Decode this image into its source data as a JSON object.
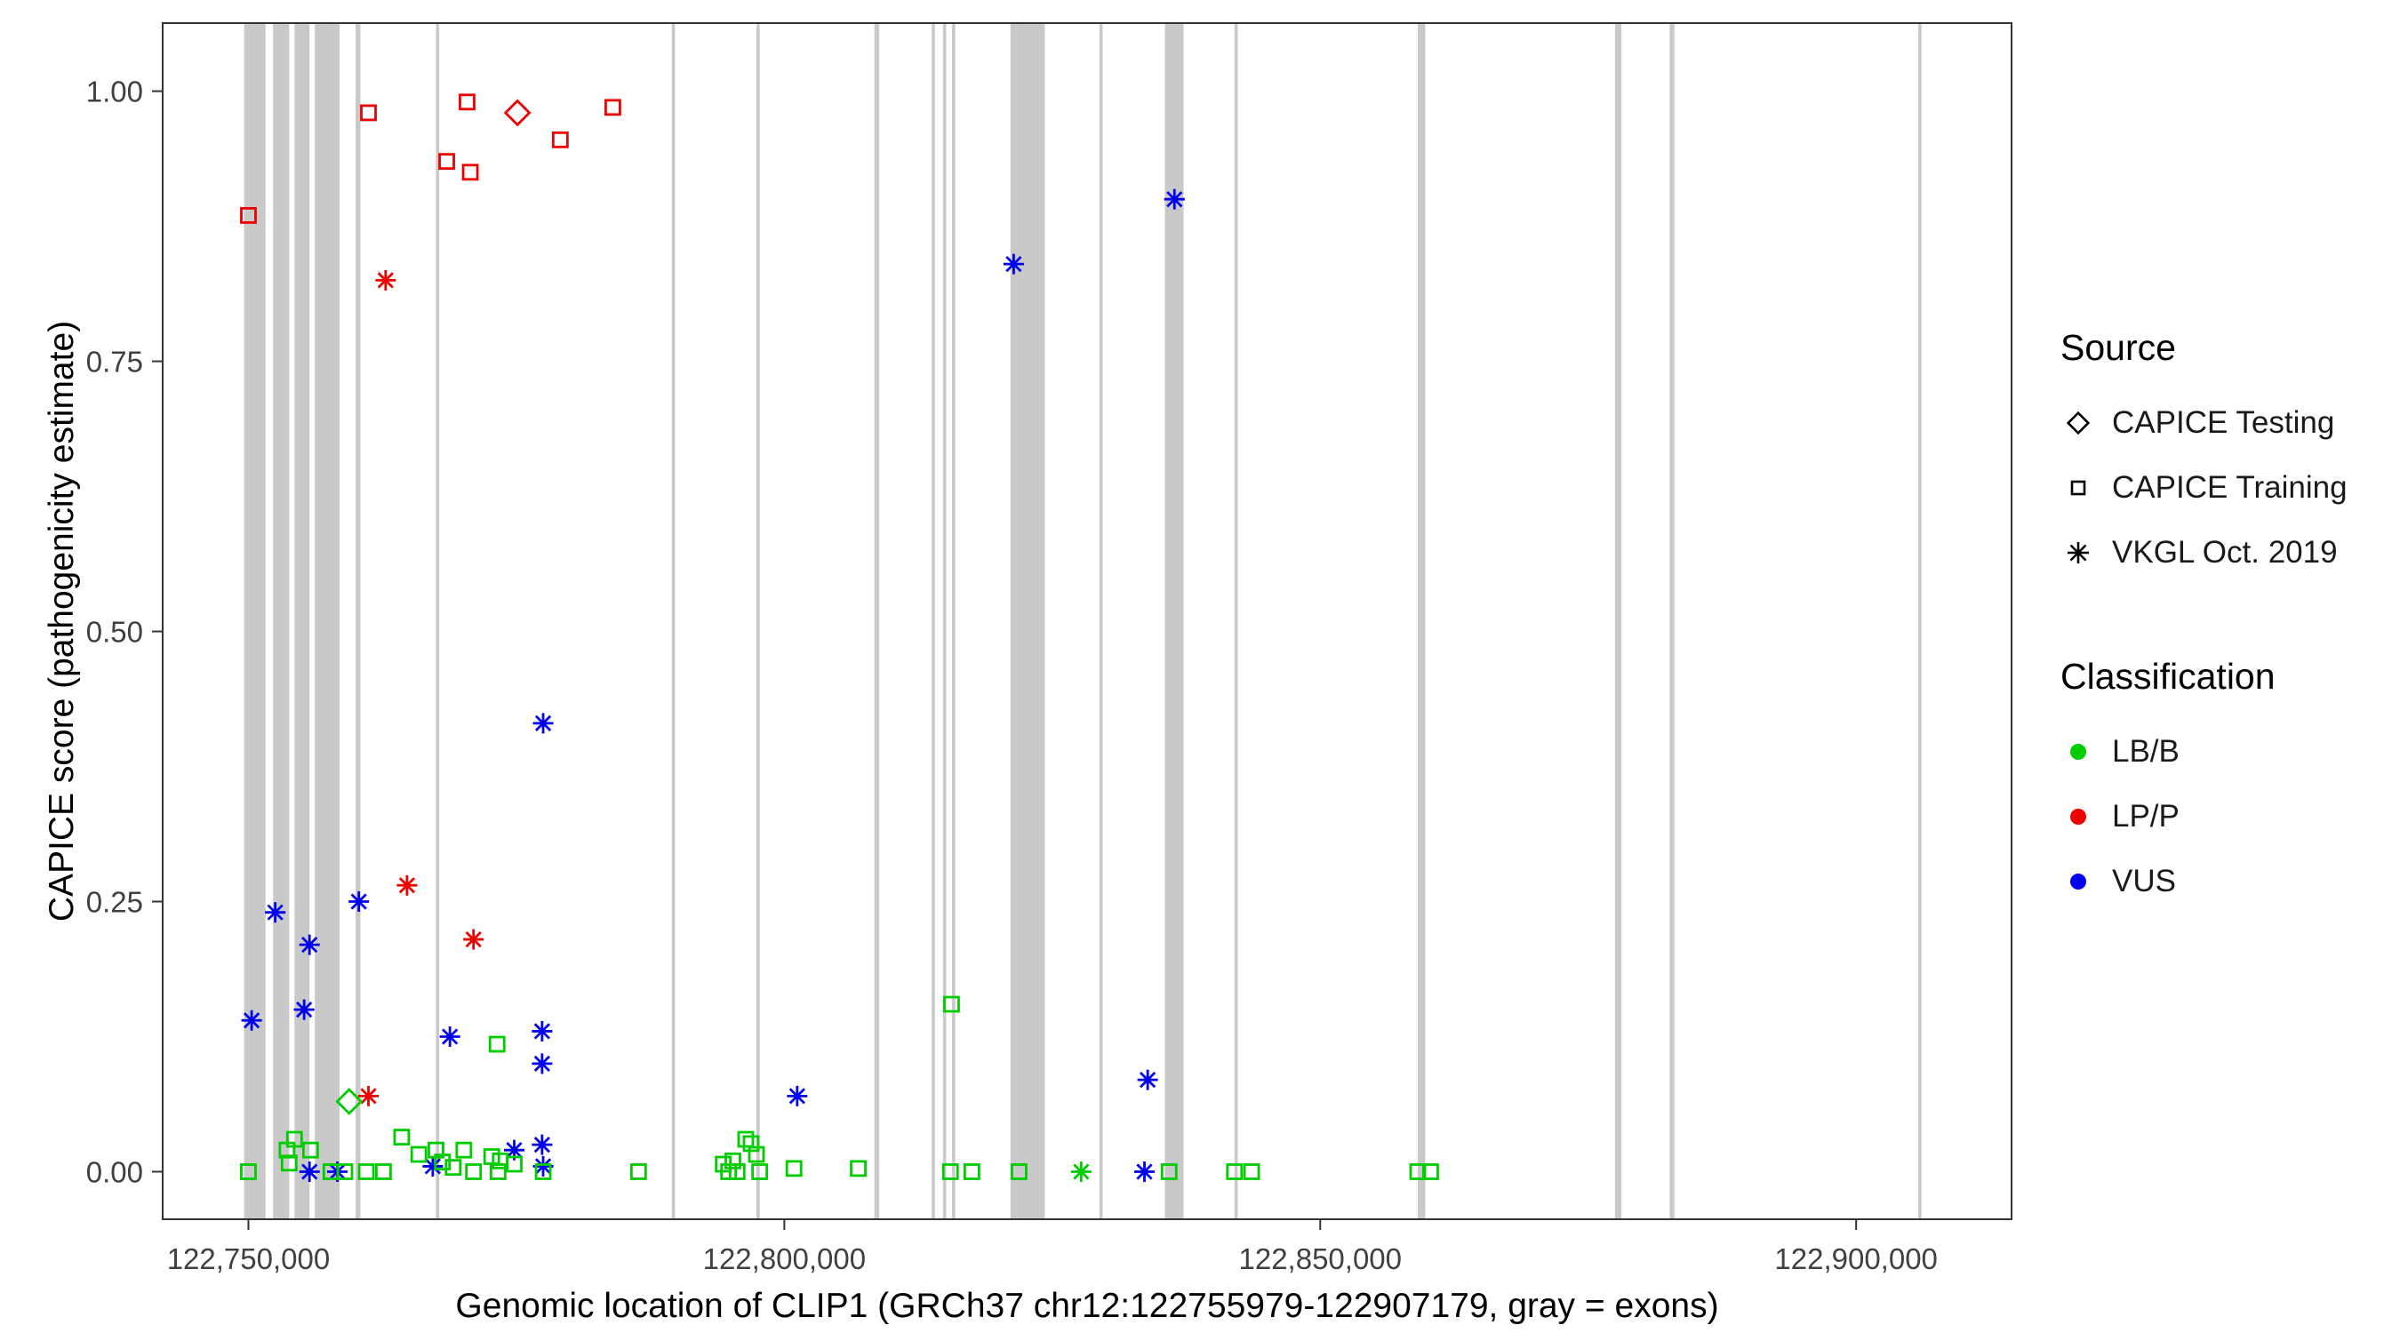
{
  "chart_data": {
    "type": "scatter",
    "title": "",
    "xlabel": "Genomic location of CLIP1 (GRCh37 chr12:122755979-122907179, gray = exons)",
    "ylabel": "CAPICE score (pathogenicity estimate)",
    "xlim": [
      122742000,
      122914500
    ],
    "ylim": [
      -0.044,
      1.063
    ],
    "grid": false,
    "legend_position": "right",
    "background": "#FFFFFF",
    "exon_color": "#C9C9C9",
    "x_ticks": [
      {
        "value": 122750000,
        "label": "122,750,000"
      },
      {
        "value": 122800000,
        "label": "122,800,000"
      },
      {
        "value": 122850000,
        "label": "122,850,000"
      },
      {
        "value": 122900000,
        "label": "122,900,000"
      }
    ],
    "y_ticks": [
      {
        "value": 0.0,
        "label": "0.00"
      },
      {
        "value": 0.25,
        "label": "0.25"
      },
      {
        "value": 0.5,
        "label": "0.50"
      },
      {
        "value": 0.75,
        "label": "0.75"
      },
      {
        "value": 1.0,
        "label": "1.00"
      }
    ],
    "colors": {
      "LB/B": "#00CC00",
      "LP/P": "#EE0000",
      "VUS": "#0000EE"
    },
    "shape_by_source": {
      "Testing": "diamond",
      "Training": "square",
      "VKGL": "asterisk"
    },
    "exons": [
      [
        122749600,
        122751600
      ],
      [
        122752300,
        122753800
      ],
      [
        122754300,
        122755700
      ],
      [
        122756200,
        122758500
      ],
      [
        122760000,
        122760450
      ],
      [
        122767500,
        122767800
      ],
      [
        122789500,
        122789800
      ],
      [
        122797400,
        122797700
      ],
      [
        122808400,
        122808850
      ],
      [
        122813750,
        122814050
      ],
      [
        122814800,
        122815100
      ],
      [
        122815650,
        122815950
      ],
      [
        122821100,
        122824300
      ],
      [
        122829400,
        122829700
      ],
      [
        122835500,
        122837250
      ],
      [
        122842000,
        122842300
      ],
      [
        122859100,
        122859800
      ],
      [
        122877500,
        122878100
      ],
      [
        122882600,
        122883050
      ],
      [
        122905800,
        122906100
      ]
    ],
    "points": [
      {
        "x": 122750000,
        "y": 0.885,
        "src": "Training",
        "cls": "LP/P"
      },
      {
        "x": 122761200,
        "y": 0.98,
        "src": "Training",
        "cls": "LP/P"
      },
      {
        "x": 122768500,
        "y": 0.935,
        "src": "Training",
        "cls": "LP/P"
      },
      {
        "x": 122770700,
        "y": 0.925,
        "src": "Training",
        "cls": "LP/P"
      },
      {
        "x": 122770400,
        "y": 0.99,
        "src": "Training",
        "cls": "LP/P"
      },
      {
        "x": 122779100,
        "y": 0.955,
        "src": "Training",
        "cls": "LP/P"
      },
      {
        "x": 122784000,
        "y": 0.985,
        "src": "Training",
        "cls": "LP/P"
      },
      {
        "x": 122775100,
        "y": 0.98,
        "src": "Testing",
        "cls": "LP/P"
      },
      {
        "x": 122762800,
        "y": 0.825,
        "src": "VKGL",
        "cls": "LP/P"
      },
      {
        "x": 122764800,
        "y": 0.265,
        "src": "VKGL",
        "cls": "LP/P"
      },
      {
        "x": 122771000,
        "y": 0.215,
        "src": "VKGL",
        "cls": "LP/P"
      },
      {
        "x": 122761200,
        "y": 0.07,
        "src": "VKGL",
        "cls": "LP/P"
      },
      {
        "x": 122750300,
        "y": 0.14,
        "src": "VKGL",
        "cls": "VUS"
      },
      {
        "x": 122752500,
        "y": 0.24,
        "src": "VKGL",
        "cls": "VUS"
      },
      {
        "x": 122755700,
        "y": 0.21,
        "src": "VKGL",
        "cls": "VUS"
      },
      {
        "x": 122755200,
        "y": 0.15,
        "src": "VKGL",
        "cls": "VUS"
      },
      {
        "x": 122760300,
        "y": 0.25,
        "src": "VKGL",
        "cls": "VUS"
      },
      {
        "x": 122768800,
        "y": 0.125,
        "src": "VKGL",
        "cls": "VUS"
      },
      {
        "x": 122777500,
        "y": 0.415,
        "src": "VKGL",
        "cls": "VUS"
      },
      {
        "x": 122777400,
        "y": 0.13,
        "src": "VKGL",
        "cls": "VUS"
      },
      {
        "x": 122777400,
        "y": 0.1,
        "src": "VKGL",
        "cls": "VUS"
      },
      {
        "x": 122774800,
        "y": 0.02,
        "src": "VKGL",
        "cls": "VUS"
      },
      {
        "x": 122777400,
        "y": 0.025,
        "src": "VKGL",
        "cls": "VUS"
      },
      {
        "x": 122777500,
        "y": 0.005,
        "src": "VKGL",
        "cls": "VUS"
      },
      {
        "x": 122755700,
        "y": 0.0,
        "src": "VKGL",
        "cls": "VUS"
      },
      {
        "x": 122758300,
        "y": 0.0,
        "src": "VKGL",
        "cls": "VUS"
      },
      {
        "x": 122767200,
        "y": 0.005,
        "src": "VKGL",
        "cls": "VUS"
      },
      {
        "x": 122821400,
        "y": 0.84,
        "src": "VKGL",
        "cls": "VUS"
      },
      {
        "x": 122836400,
        "y": 0.9,
        "src": "VKGL",
        "cls": "VUS"
      },
      {
        "x": 122801200,
        "y": 0.07,
        "src": "VKGL",
        "cls": "VUS"
      },
      {
        "x": 122833900,
        "y": 0.085,
        "src": "VKGL",
        "cls": "VUS"
      },
      {
        "x": 122833600,
        "y": 0.0,
        "src": "VKGL",
        "cls": "VUS"
      },
      {
        "x": 122759400,
        "y": 0.065,
        "src": "Testing",
        "cls": "LB/B"
      },
      {
        "x": 122827700,
        "y": 0.0,
        "src": "VKGL",
        "cls": "LB/B"
      },
      {
        "x": 122750000,
        "y": 0.0,
        "src": "Training",
        "cls": "LB/B"
      },
      {
        "x": 122753600,
        "y": 0.02,
        "src": "Training",
        "cls": "LB/B"
      },
      {
        "x": 122753800,
        "y": 0.008,
        "src": "Training",
        "cls": "LB/B"
      },
      {
        "x": 122754300,
        "y": 0.03,
        "src": "Training",
        "cls": "LB/B"
      },
      {
        "x": 122755800,
        "y": 0.02,
        "src": "Training",
        "cls": "LB/B"
      },
      {
        "x": 122757700,
        "y": 0.0,
        "src": "Training",
        "cls": "LB/B"
      },
      {
        "x": 122759000,
        "y": 0.0,
        "src": "Training",
        "cls": "LB/B"
      },
      {
        "x": 122761000,
        "y": 0.0,
        "src": "Training",
        "cls": "LB/B"
      },
      {
        "x": 122762600,
        "y": 0.0,
        "src": "Training",
        "cls": "LB/B"
      },
      {
        "x": 122764300,
        "y": 0.032,
        "src": "Training",
        "cls": "LB/B"
      },
      {
        "x": 122765900,
        "y": 0.016,
        "src": "Training",
        "cls": "LB/B"
      },
      {
        "x": 122767500,
        "y": 0.02,
        "src": "Training",
        "cls": "LB/B"
      },
      {
        "x": 122768100,
        "y": 0.009,
        "src": "Training",
        "cls": "LB/B"
      },
      {
        "x": 122769100,
        "y": 0.004,
        "src": "Training",
        "cls": "LB/B"
      },
      {
        "x": 122770100,
        "y": 0.02,
        "src": "Training",
        "cls": "LB/B"
      },
      {
        "x": 122771000,
        "y": 0.0,
        "src": "Training",
        "cls": "LB/B"
      },
      {
        "x": 122772700,
        "y": 0.014,
        "src": "Training",
        "cls": "LB/B"
      },
      {
        "x": 122773200,
        "y": 0.118,
        "src": "Training",
        "cls": "LB/B"
      },
      {
        "x": 122773300,
        "y": 0.0,
        "src": "Training",
        "cls": "LB/B"
      },
      {
        "x": 122773500,
        "y": 0.01,
        "src": "Training",
        "cls": "LB/B"
      },
      {
        "x": 122774800,
        "y": 0.007,
        "src": "Training",
        "cls": "LB/B"
      },
      {
        "x": 122777500,
        "y": 0.0,
        "src": "Training",
        "cls": "LB/B"
      },
      {
        "x": 122786400,
        "y": 0.0,
        "src": "Training",
        "cls": "LB/B"
      },
      {
        "x": 122794300,
        "y": 0.007,
        "src": "Training",
        "cls": "LB/B"
      },
      {
        "x": 122794800,
        "y": 0.0,
        "src": "Training",
        "cls": "LB/B"
      },
      {
        "x": 122795200,
        "y": 0.01,
        "src": "Training",
        "cls": "LB/B"
      },
      {
        "x": 122795600,
        "y": 0.0,
        "src": "Training",
        "cls": "LB/B"
      },
      {
        "x": 122796400,
        "y": 0.03,
        "src": "Training",
        "cls": "LB/B"
      },
      {
        "x": 122796900,
        "y": 0.026,
        "src": "Training",
        "cls": "LB/B"
      },
      {
        "x": 122797400,
        "y": 0.016,
        "src": "Training",
        "cls": "LB/B"
      },
      {
        "x": 122797700,
        "y": 0.0,
        "src": "Training",
        "cls": "LB/B"
      },
      {
        "x": 122800900,
        "y": 0.003,
        "src": "Training",
        "cls": "LB/B"
      },
      {
        "x": 122806900,
        "y": 0.003,
        "src": "Training",
        "cls": "LB/B"
      },
      {
        "x": 122815600,
        "y": 0.155,
        "src": "Training",
        "cls": "LB/B"
      },
      {
        "x": 122815500,
        "y": 0.0,
        "src": "Training",
        "cls": "LB/B"
      },
      {
        "x": 122817500,
        "y": 0.0,
        "src": "Training",
        "cls": "LB/B"
      },
      {
        "x": 122821900,
        "y": 0.0,
        "src": "Training",
        "cls": "LB/B"
      },
      {
        "x": 122835900,
        "y": 0.0,
        "src": "Training",
        "cls": "LB/B"
      },
      {
        "x": 122842000,
        "y": 0.0,
        "src": "Training",
        "cls": "LB/B"
      },
      {
        "x": 122843600,
        "y": 0.0,
        "src": "Training",
        "cls": "LB/B"
      },
      {
        "x": 122859100,
        "y": 0.0,
        "src": "Training",
        "cls": "LB/B"
      },
      {
        "x": 122860300,
        "y": 0.0,
        "src": "Training",
        "cls": "LB/B"
      }
    ]
  },
  "legend": {
    "source": {
      "title": "Source",
      "items": [
        {
          "label": "CAPICE Testing",
          "shape": "diamond"
        },
        {
          "label": "CAPICE Training",
          "shape": "square"
        },
        {
          "label": "VKGL Oct. 2019",
          "shape": "asterisk"
        }
      ]
    },
    "classification": {
      "title": "Classification",
      "items": [
        {
          "label": "LB/B",
          "color": "#00CC00"
        },
        {
          "label": "LP/P",
          "color": "#EE0000"
        },
        {
          "label": "VUS",
          "color": "#0000EE"
        }
      ]
    }
  }
}
